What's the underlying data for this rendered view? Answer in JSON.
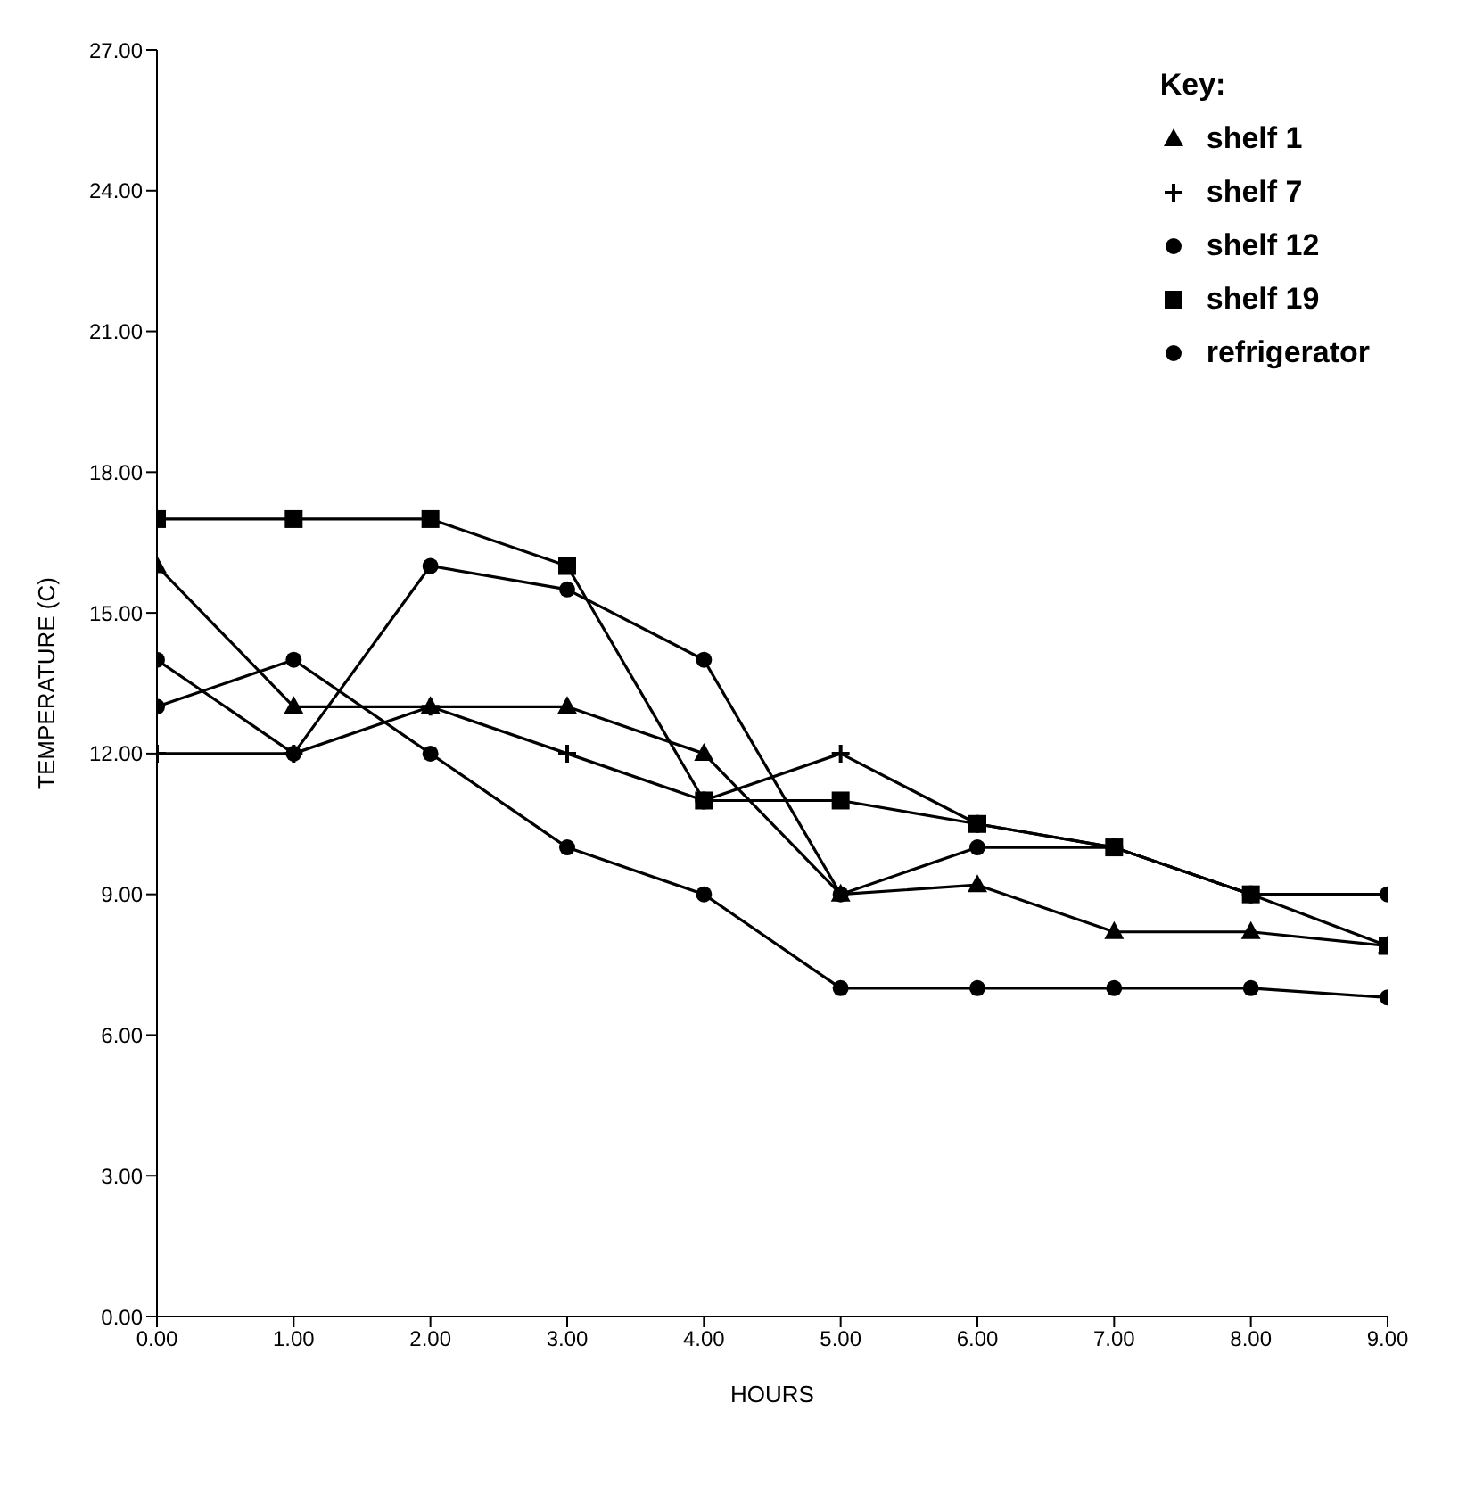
{
  "chart_data": {
    "type": "line",
    "xlabel": "HOURS",
    "ylabel": "TEMPERATURE (C)",
    "legend_title": "Key:",
    "legend": "top right",
    "grid": false,
    "x": [
      0,
      1,
      2,
      3,
      4,
      5,
      6,
      7,
      8,
      9
    ],
    "xlim": [
      0,
      9
    ],
    "xticks": [
      {
        "value": 0,
        "label": "0.00"
      },
      {
        "value": 1,
        "label": "1.00"
      },
      {
        "value": 2,
        "label": "2.00"
      },
      {
        "value": 3,
        "label": "3.00"
      },
      {
        "value": 4,
        "label": "4.00"
      },
      {
        "value": 5,
        "label": "5.00"
      },
      {
        "value": 6,
        "label": "6.00"
      },
      {
        "value": 7,
        "label": "7.00"
      },
      {
        "value": 8,
        "label": "8.00"
      },
      {
        "value": 9,
        "label": "9.00"
      }
    ],
    "ylim": [
      0,
      27
    ],
    "yticks": [
      {
        "value": 0,
        "label": "0.00"
      },
      {
        "value": 3,
        "label": "3.00"
      },
      {
        "value": 6,
        "label": "6.00"
      },
      {
        "value": 9,
        "label": "9.00"
      },
      {
        "value": 12,
        "label": "12.00"
      },
      {
        "value": 15,
        "label": "15.00"
      },
      {
        "value": 18,
        "label": "18.00"
      },
      {
        "value": 21,
        "label": "21.00"
      },
      {
        "value": 24,
        "label": "24.00"
      },
      {
        "value": 27,
        "label": "27.00"
      }
    ],
    "series": [
      {
        "name": "shelf 1",
        "color": "#000000",
        "marker": "triangle",
        "values": [
          16,
          13,
          13,
          13,
          12,
          9,
          9.2,
          8.2,
          8.2,
          7.9
        ]
      },
      {
        "name": "shelf 7",
        "color": "#000000",
        "marker": "cross",
        "values": [
          12,
          12,
          13,
          12,
          11,
          12,
          10.5,
          10,
          9,
          null
        ]
      },
      {
        "name": "shelf 12",
        "color": "#000000",
        "marker": "circle",
        "values": [
          14,
          12,
          16,
          15.5,
          14,
          9,
          10,
          10,
          9,
          9
        ]
      },
      {
        "name": "shelf 19",
        "color": "#000000",
        "marker": "square",
        "values": [
          17,
          17,
          17,
          16,
          11,
          11,
          10.5,
          10,
          9,
          7.9
        ]
      },
      {
        "name": "refrigerator",
        "color": "#000000",
        "marker": "circle",
        "values": [
          13,
          14,
          12,
          10,
          9,
          7,
          7,
          7,
          7,
          6.8
        ]
      }
    ]
  }
}
